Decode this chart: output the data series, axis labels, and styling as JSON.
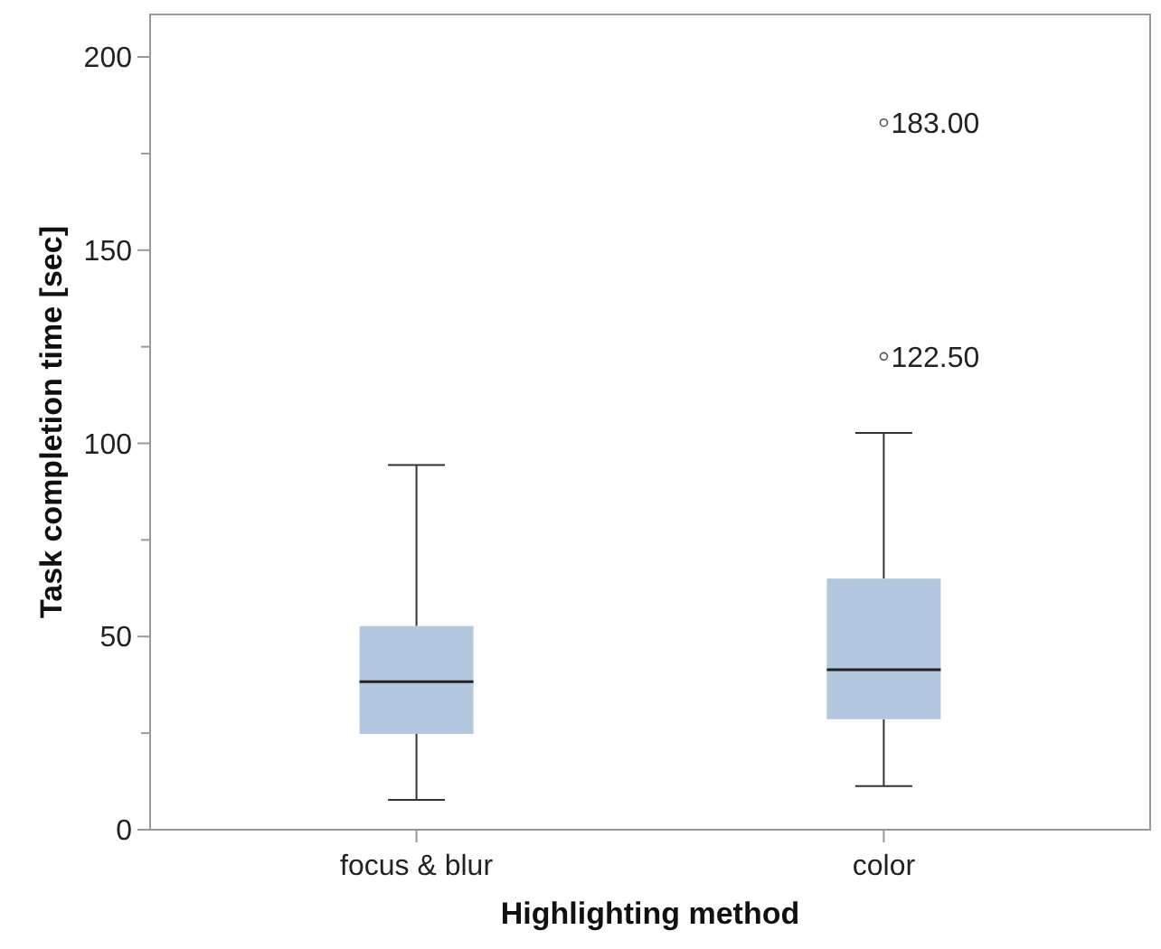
{
  "chart_data": {
    "type": "box",
    "xlabel": "Highlighting method",
    "ylabel": "Task completion time [sec]",
    "categories": [
      "focus & blur",
      "color"
    ],
    "color": "#b3c8df",
    "boxes": [
      {
        "low": 7.7,
        "q1": 24.8,
        "median": 38.3,
        "q3": 52.7,
        "high": 94.4
      },
      {
        "low": 11.3,
        "q1": 28.6,
        "median": 41.4,
        "q3": 65.0,
        "high": 102.7,
        "outliers": [
          122.5,
          183
        ]
      }
    ],
    "ylim": [
      0,
      211
    ],
    "yticks": [
      0,
      {
        "value": 25,
        "label": null
      },
      50,
      {
        "value": 75,
        "label": null
      },
      100,
      {
        "value": 125,
        "label": null
      },
      150,
      {
        "value": 175,
        "label": null
      },
      200
    ],
    "annotations": [
      "122.50",
      "183.00"
    ],
    "grid": false
  }
}
